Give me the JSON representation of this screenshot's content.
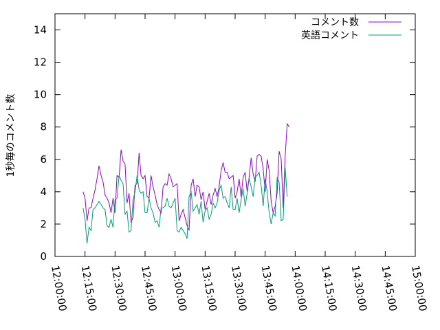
{
  "chart_data": {
    "type": "line",
    "ylabel": "1秒毎のコメント数",
    "ylim": [
      0,
      15
    ],
    "yticks": [
      0,
      2,
      4,
      6,
      8,
      10,
      12,
      14
    ],
    "xlim": [
      "12:00:00",
      "15:00:00"
    ],
    "xticks": [
      "12:00:00",
      "12:15:00",
      "12:30:00",
      "12:45:00",
      "13:00:00",
      "13:15:00",
      "13:30:00",
      "13:45:00",
      "14:00:00",
      "14:15:00",
      "14:30:00",
      "14:45:00",
      "15:00:00"
    ],
    "grid": false,
    "legend_position": "top-right",
    "series": [
      {
        "name": "コメント数",
        "color": "#9400d3",
        "points": [
          [
            "12:14:00",
            4.0
          ],
          [
            "12:15:00",
            3.6
          ],
          [
            "12:16:00",
            2.2
          ],
          [
            "12:17:00",
            3.0
          ],
          [
            "12:18:00",
            3.0
          ],
          [
            "12:19:00",
            3.6
          ],
          [
            "12:20:00",
            4.1
          ],
          [
            "12:21:00",
            4.8
          ],
          [
            "12:22:00",
            5.6
          ],
          [
            "12:23:00",
            5.0
          ],
          [
            "12:24:00",
            4.6
          ],
          [
            "12:25:00",
            3.8
          ],
          [
            "12:26:00",
            3.6
          ],
          [
            "12:27:00",
            3.3
          ],
          [
            "12:28:00",
            2.7
          ],
          [
            "12:29:00",
            3.6
          ],
          [
            "12:30:00",
            2.7
          ],
          [
            "12:31:00",
            5.0
          ],
          [
            "12:32:00",
            4.9
          ],
          [
            "12:33:00",
            6.6
          ],
          [
            "12:34:00",
            5.9
          ],
          [
            "12:35:00",
            5.7
          ],
          [
            "12:36:00",
            3.3
          ],
          [
            "12:37:00",
            3.9
          ],
          [
            "12:38:00",
            2.1
          ],
          [
            "12:39:00",
            2.4
          ],
          [
            "12:40:00",
            4.4
          ],
          [
            "12:41:00",
            4.5
          ],
          [
            "12:42:00",
            6.4
          ],
          [
            "12:43:00",
            5.0
          ],
          [
            "12:44:00",
            4.8
          ],
          [
            "12:45:00",
            5.0
          ],
          [
            "12:46:00",
            3.7
          ],
          [
            "12:47:00",
            3.6
          ],
          [
            "12:48:00",
            5.0
          ],
          [
            "12:49:00",
            4.3
          ],
          [
            "12:50:00",
            3.8
          ],
          [
            "12:51:00",
            3.2
          ],
          [
            "12:52:00",
            2.9
          ],
          [
            "12:53:00",
            2.7
          ],
          [
            "12:54:00",
            4.3
          ],
          [
            "12:55:00",
            4.5
          ],
          [
            "12:56:00",
            4.4
          ],
          [
            "12:57:00",
            5.1
          ],
          [
            "12:58:00",
            4.8
          ],
          [
            "12:59:00",
            4.3
          ],
          [
            "13:00:00",
            4.4
          ],
          [
            "13:01:00",
            4.5
          ],
          [
            "13:02:00",
            2.2
          ],
          [
            "13:03:00",
            2.6
          ],
          [
            "13:04:00",
            2.9
          ],
          [
            "13:05:00",
            2.4
          ],
          [
            "13:06:00",
            1.9
          ],
          [
            "13:07:00",
            1.6
          ],
          [
            "13:08:00",
            4.4
          ],
          [
            "13:09:00",
            4.8
          ],
          [
            "13:10:00",
            3.7
          ],
          [
            "13:11:00",
            4.4
          ],
          [
            "13:12:00",
            4.3
          ],
          [
            "13:13:00",
            3.5
          ],
          [
            "13:14:00",
            4.0
          ],
          [
            "13:15:00",
            2.9
          ],
          [
            "13:16:00",
            3.4
          ],
          [
            "13:17:00",
            3.9
          ],
          [
            "13:18:00",
            3.2
          ],
          [
            "13:19:00",
            3.8
          ],
          [
            "13:20:00",
            4.2
          ],
          [
            "13:21:00",
            3.7
          ],
          [
            "13:22:00",
            4.3
          ],
          [
            "13:23:00",
            5.3
          ],
          [
            "13:24:00",
            5.8
          ],
          [
            "13:25:00",
            5.2
          ],
          [
            "13:26:00",
            5.2
          ],
          [
            "13:27:00",
            4.8
          ],
          [
            "13:28:00",
            4.9
          ],
          [
            "13:29:00",
            5.0
          ],
          [
            "13:30:00",
            3.6
          ],
          [
            "13:31:00",
            4.0
          ],
          [
            "13:32:00",
            4.8
          ],
          [
            "13:33:00",
            3.7
          ],
          [
            "13:34:00",
            4.9
          ],
          [
            "13:35:00",
            5.2
          ],
          [
            "13:36:00",
            4.0
          ],
          [
            "13:37:00",
            4.9
          ],
          [
            "13:38:00",
            6.1
          ],
          [
            "13:39:00",
            5.1
          ],
          [
            "13:40:00",
            4.6
          ],
          [
            "13:41:00",
            6.2
          ],
          [
            "13:42:00",
            6.3
          ],
          [
            "13:43:00",
            6.2
          ],
          [
            "13:44:00",
            5.4
          ],
          [
            "13:45:00",
            4.0
          ],
          [
            "13:46:00",
            6.0
          ],
          [
            "13:47:00",
            5.3
          ],
          [
            "13:48:00",
            3.4
          ],
          [
            "13:49:00",
            2.7
          ],
          [
            "13:50:00",
            3.1
          ],
          [
            "13:51:00",
            3.9
          ],
          [
            "13:52:00",
            6.5
          ],
          [
            "13:53:00",
            6.0
          ],
          [
            "13:54:00",
            3.0
          ],
          [
            "13:55:00",
            6.2
          ],
          [
            "13:56:00",
            8.2
          ],
          [
            "13:57:00",
            8.0
          ]
        ]
      },
      {
        "name": "英語コメント",
        "color": "#009e73",
        "points": [
          [
            "12:14:00",
            3.0
          ],
          [
            "12:15:00",
            2.3
          ],
          [
            "12:16:00",
            0.8
          ],
          [
            "12:17:00",
            1.8
          ],
          [
            "12:18:00",
            1.6
          ],
          [
            "12:19:00",
            2.9
          ],
          [
            "12:20:00",
            3.0
          ],
          [
            "12:21:00",
            3.2
          ],
          [
            "12:22:00",
            3.4
          ],
          [
            "12:23:00",
            3.2
          ],
          [
            "12:24:00",
            3.0
          ],
          [
            "12:25:00",
            2.9
          ],
          [
            "12:26:00",
            1.9
          ],
          [
            "12:27:00",
            1.8
          ],
          [
            "12:28:00",
            2.3
          ],
          [
            "12:29:00",
            1.8
          ],
          [
            "12:30:00",
            3.5
          ],
          [
            "12:31:00",
            3.6
          ],
          [
            "12:32:00",
            5.0
          ],
          [
            "12:33:00",
            4.7
          ],
          [
            "12:34:00",
            4.5
          ],
          [
            "12:35:00",
            2.6
          ],
          [
            "12:36:00",
            2.8
          ],
          [
            "12:37:00",
            1.5
          ],
          [
            "12:38:00",
            1.6
          ],
          [
            "12:39:00",
            3.5
          ],
          [
            "12:40:00",
            4.0
          ],
          [
            "12:41:00",
            5.0
          ],
          [
            "12:42:00",
            4.1
          ],
          [
            "12:43:00",
            3.9
          ],
          [
            "12:44:00",
            4.0
          ],
          [
            "12:45:00",
            2.7
          ],
          [
            "12:46:00",
            2.7
          ],
          [
            "12:47:00",
            3.6
          ],
          [
            "12:48:00",
            3.0
          ],
          [
            "12:49:00",
            2.7
          ],
          [
            "12:50:00",
            2.1
          ],
          [
            "12:51:00",
            2.2
          ],
          [
            "12:52:00",
            1.8
          ],
          [
            "12:53:00",
            3.0
          ],
          [
            "12:54:00",
            3.0
          ],
          [
            "12:55:00",
            3.1
          ],
          [
            "12:56:00",
            3.6
          ],
          [
            "12:57:00",
            3.1
          ],
          [
            "12:58:00",
            3.0
          ],
          [
            "12:59:00",
            3.3
          ],
          [
            "13:00:00",
            3.6
          ],
          [
            "13:01:00",
            1.6
          ],
          [
            "13:02:00",
            1.5
          ],
          [
            "13:03:00",
            1.8
          ],
          [
            "13:04:00",
            1.6
          ],
          [
            "13:05:00",
            1.4
          ],
          [
            "13:06:00",
            1.1
          ],
          [
            "13:07:00",
            3.7
          ],
          [
            "13:08:00",
            4.0
          ],
          [
            "13:09:00",
            2.8
          ],
          [
            "13:10:00",
            3.0
          ],
          [
            "13:11:00",
            3.2
          ],
          [
            "13:12:00",
            2.6
          ],
          [
            "13:13:00",
            3.4
          ],
          [
            "13:14:00",
            2.1
          ],
          [
            "13:15:00",
            2.8
          ],
          [
            "13:16:00",
            3.0
          ],
          [
            "13:17:00",
            2.3
          ],
          [
            "13:18:00",
            2.6
          ],
          [
            "13:19:00",
            3.3
          ],
          [
            "13:20:00",
            3.0
          ],
          [
            "13:21:00",
            3.3
          ],
          [
            "13:22:00",
            4.1
          ],
          [
            "13:23:00",
            4.4
          ],
          [
            "13:24:00",
            3.6
          ],
          [
            "13:25:00",
            3.7
          ],
          [
            "13:26:00",
            3.3
          ],
          [
            "13:27:00",
            3.0
          ],
          [
            "13:28:00",
            4.3
          ],
          [
            "13:29:00",
            2.9
          ],
          [
            "13:30:00",
            2.9
          ],
          [
            "13:31:00",
            3.6
          ],
          [
            "13:32:00",
            2.7
          ],
          [
            "13:33:00",
            3.5
          ],
          [
            "13:34:00",
            4.2
          ],
          [
            "13:35:00",
            3.1
          ],
          [
            "13:36:00",
            3.9
          ],
          [
            "13:37:00",
            4.8
          ],
          [
            "13:38:00",
            4.3
          ],
          [
            "13:39:00",
            3.7
          ],
          [
            "13:40:00",
            4.9
          ],
          [
            "13:41:00",
            5.0
          ],
          [
            "13:42:00",
            5.2
          ],
          [
            "13:43:00",
            4.4
          ],
          [
            "13:44:00",
            3.1
          ],
          [
            "13:45:00",
            4.8
          ],
          [
            "13:46:00",
            4.0
          ],
          [
            "13:47:00",
            2.7
          ],
          [
            "13:48:00",
            2.0
          ],
          [
            "13:49:00",
            2.7
          ],
          [
            "13:50:00",
            2.5
          ],
          [
            "13:51:00",
            4.9
          ],
          [
            "13:52:00",
            4.6
          ],
          [
            "13:53:00",
            2.2
          ],
          [
            "13:54:00",
            2.3
          ],
          [
            "13:55:00",
            5.5
          ],
          [
            "13:56:00",
            3.7
          ]
        ]
      }
    ]
  }
}
